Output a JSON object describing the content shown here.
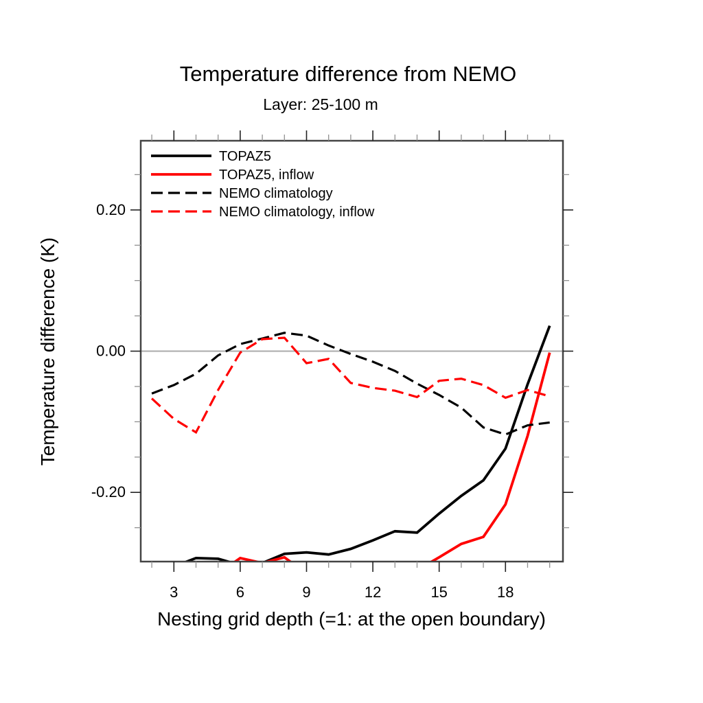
{
  "title": "Temperature difference from NEMO",
  "subtitle": "Layer: 25-100 m",
  "x_axis": {
    "label": "Nesting grid depth (=1: at the open boundary)",
    "range": [
      1.5,
      20.6
    ],
    "major_ticks": [
      {
        "value": 3,
        "label": "3"
      },
      {
        "value": 6,
        "label": "6"
      },
      {
        "value": 9,
        "label": "9"
      },
      {
        "value": 12,
        "label": "12"
      },
      {
        "value": 15,
        "label": "15"
      },
      {
        "value": 18,
        "label": "18"
      }
    ],
    "minor_ticks": [
      2,
      4,
      5,
      7,
      8,
      10,
      11,
      13,
      14,
      16,
      17,
      19,
      20
    ]
  },
  "y_axis": {
    "label": "Temperature difference (K)",
    "range": [
      -0.298,
      0.298
    ],
    "major_ticks": [
      {
        "value": 0.2,
        "label": "0.20"
      },
      {
        "value": 0.0,
        "label": "0.00"
      },
      {
        "value": -0.2,
        "label": "-0.20"
      }
    ],
    "minor_ticks": [
      0.25,
      0.15,
      0.1,
      0.05,
      -0.05,
      -0.1,
      -0.15,
      -0.25
    ]
  },
  "zero_line_value": 0.0,
  "colors": {
    "black_series": "#000000",
    "red_series": "#ff0000",
    "zero_line": "#aaaaaa",
    "frame": "#444444",
    "major_tick": "#222222",
    "minor_tick": "#909090"
  },
  "chart_data": {
    "type": "line",
    "title": "Temperature difference from NEMO",
    "subtitle": "Layer: 25-100 m",
    "xlabel": "Nesting grid depth (=1: at the open boundary)",
    "ylabel": "Temperature difference (K)",
    "xlim": [
      1.5,
      20.6
    ],
    "ylim": [
      -0.298,
      0.298
    ],
    "grid": "zero-line only",
    "legend_position": "top-left inside plot",
    "note": "values below -0.298 K are clipped by the bottom frame",
    "x": [
      2,
      3,
      4,
      5,
      6,
      7,
      8,
      9,
      10,
      11,
      12,
      13,
      14,
      15,
      16,
      17,
      18,
      19,
      20
    ],
    "series": [
      {
        "name": "TOPAZ5",
        "color": "#000000",
        "style": "solid",
        "values": [
          -0.315,
          -0.305,
          -0.293,
          -0.294,
          -0.303,
          -0.3,
          -0.287,
          -0.285,
          -0.288,
          -0.28,
          -0.268,
          -0.255,
          -0.257,
          -0.23,
          -0.205,
          -0.183,
          -0.138,
          -0.047,
          0.036
        ]
      },
      {
        "name": "TOPAZ5, inflow",
        "color": "#ff0000",
        "style": "solid",
        "values": [
          -0.33,
          -0.325,
          -0.32,
          -0.315,
          -0.293,
          -0.3,
          -0.292,
          -0.315,
          -0.32,
          -0.32,
          -0.32,
          -0.315,
          -0.31,
          -0.292,
          -0.273,
          -0.263,
          -0.217,
          -0.12,
          -0.002
        ]
      },
      {
        "name": "NEMO climatology",
        "color": "#000000",
        "style": "dashed",
        "values": [
          -0.06,
          -0.048,
          -0.032,
          -0.006,
          0.01,
          0.018,
          0.026,
          0.022,
          0.008,
          -0.004,
          -0.015,
          -0.028,
          -0.046,
          -0.062,
          -0.08,
          -0.108,
          -0.118,
          -0.105,
          -0.101
        ]
      },
      {
        "name": "NEMO climatology, inflow",
        "color": "#ff0000",
        "style": "dashed",
        "values": [
          -0.067,
          -0.096,
          -0.115,
          -0.055,
          -0.002,
          0.017,
          0.019,
          -0.017,
          -0.011,
          -0.045,
          -0.052,
          -0.056,
          -0.065,
          -0.042,
          -0.039,
          -0.048,
          -0.066,
          -0.055,
          -0.064
        ]
      }
    ]
  }
}
